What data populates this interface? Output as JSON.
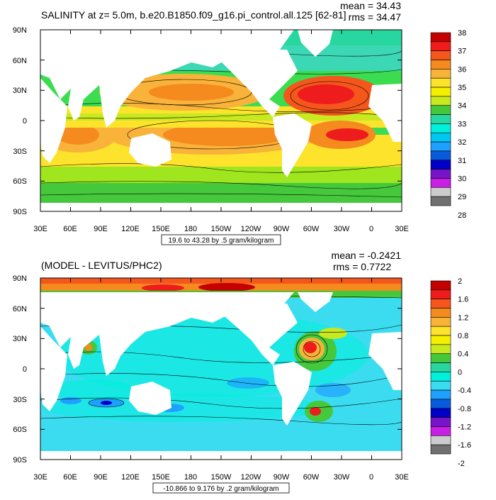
{
  "panels": [
    {
      "title": "SALINITY at z=   5.0m, b.e20.B1850.f09_g16.pi_control.all.125 [62-81]",
      "stats": [
        "mean = 34.43",
        "rms = 34.47"
      ],
      "y_ticks": [
        "90N",
        "60N",
        "30N",
        "0",
        "30S",
        "60S",
        "90S"
      ],
      "x_ticks": [
        "30E",
        "60E",
        "90E",
        "120E",
        "150E",
        "180",
        "150W",
        "120W",
        "90W",
        "60W",
        "30W",
        "0",
        "30E"
      ],
      "range_label": "19.6 to 43.28 by .5 gram/kilogram",
      "colorbar_labels": [
        "38",
        "37",
        "36",
        "35",
        "34",
        "33",
        "32",
        "31",
        "30",
        "29",
        "28"
      ],
      "colorbar_colors": [
        "#c40000",
        "#ee1c1c",
        "#f5561c",
        "#f58a1e",
        "#f9b23a",
        "#fde32c",
        "#f4f000",
        "#c8e820",
        "#46c83c",
        "#28d7a0",
        "#00f0dc",
        "#00c8f0",
        "#1ea0ff",
        "#0a5adc",
        "#0000c8",
        "#7814c8",
        "#c81ee6",
        "#cccccc",
        "#707070"
      ]
    },
    {
      "title": "(MODEL - LEVITUS/PHC2)",
      "stats": [
        "mean = -0.2421",
        "rms = 0.7722"
      ],
      "y_ticks": [
        "90N",
        "60N",
        "30N",
        "0",
        "30S",
        "60S",
        "90S"
      ],
      "x_ticks": [
        "30E",
        "60E",
        "90E",
        "120E",
        "150E",
        "180",
        "150W",
        "120W",
        "90W",
        "60W",
        "30W",
        "0",
        "30E"
      ],
      "range_label": "-10.866 to 9.176 by .2 gram/kilogram",
      "colorbar_labels": [
        "2",
        "1.6",
        "1.2",
        "0.8",
        "0.4",
        "0",
        "-0.4",
        "-0.8",
        "-1.2",
        "-1.6",
        "-2"
      ],
      "colorbar_colors": [
        "#c40000",
        "#ee1c1c",
        "#f5561c",
        "#f58a1e",
        "#f9b23a",
        "#fde32c",
        "#f4f000",
        "#c8e820",
        "#46c83c",
        "#28d7a0",
        "#00f0dc",
        "#3cdcf0",
        "#1ea0ff",
        "#0a5adc",
        "#0000c8",
        "#7814c8",
        "#c81ee6",
        "#cccccc",
        "#707070"
      ]
    }
  ]
}
